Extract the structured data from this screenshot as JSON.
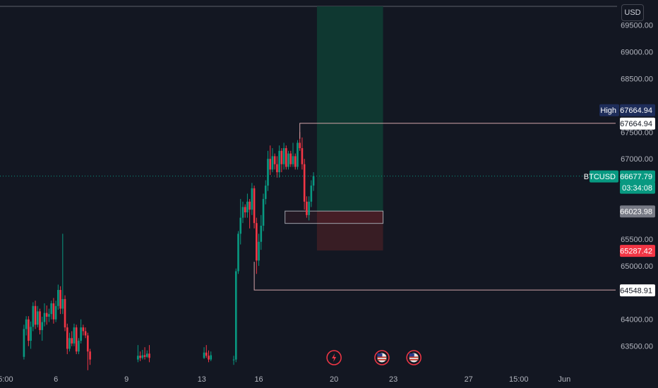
{
  "header": {
    "currency_label": "USD"
  },
  "colors": {
    "background": "#131722",
    "up": "#089981",
    "down": "#f23645",
    "grid": "#1e222d",
    "axis_text": "#b2b5be",
    "profit_zone": "#0f3a33",
    "loss_zone": "#3a1d25",
    "high_badge": "#1e2d5a",
    "symbol_badge": "#089981",
    "entry_badge": "#787b86",
    "stop_badge": "#f23645"
  },
  "chart_data": {
    "type": "candlestick",
    "symbol": "BTCUSD",
    "y_ticks": [
      63500,
      64000,
      64500,
      65000,
      65500,
      66000,
      66500,
      67000,
      67500,
      68000,
      68500,
      69000,
      69500
    ],
    "y_tick_labels": [
      "63500.00",
      "64000.00",
      "",
      "65000.00",
      "65500.00",
      "",
      "",
      "67000.00",
      "67500.00",
      "",
      "68500.00",
      "69000.00",
      "69500.00"
    ],
    "ylim": [
      63100,
      69850
    ],
    "x_ticks": [
      {
        "label": "15:00",
        "index": 1
      },
      {
        "label": "6",
        "index": 24
      },
      {
        "label": "9",
        "index": 55
      },
      {
        "label": "13",
        "index": 88
      },
      {
        "label": "16",
        "index": 113
      },
      {
        "label": "20",
        "index": 146
      },
      {
        "label": "23",
        "index": 172
      },
      {
        "label": "27",
        "index": 205
      },
      {
        "label": "15:00",
        "index": 227
      },
      {
        "label": "Jun",
        "index": 247
      }
    ],
    "x_count": 270,
    "candles": [
      [
        10,
        63300,
        63820,
        63250,
        63900
      ],
      [
        11,
        63820,
        64000,
        63700,
        64060
      ],
      [
        12,
        64000,
        63600,
        63500,
        64060
      ],
      [
        13,
        63600,
        63860,
        63450,
        63960
      ],
      [
        14,
        63860,
        64250,
        63780,
        64320
      ],
      [
        15,
        64250,
        63900,
        63820,
        64350
      ],
      [
        16,
        63900,
        64150,
        63850,
        64250
      ],
      [
        17,
        64150,
        63800,
        63720,
        64200
      ],
      [
        18,
        63800,
        63950,
        63600,
        64050
      ],
      [
        19,
        63950,
        64120,
        63870,
        64300
      ],
      [
        20,
        64120,
        64050,
        63900,
        64260
      ],
      [
        21,
        64050,
        64100,
        63950,
        64200
      ],
      [
        22,
        64100,
        64300,
        64000,
        64350
      ],
      [
        23,
        64300,
        64000,
        63920,
        64400
      ],
      [
        24,
        64000,
        64250,
        63950,
        64350
      ],
      [
        25,
        64250,
        64550,
        64180,
        64650
      ],
      [
        26,
        64550,
        64200,
        64100,
        64620
      ],
      [
        27,
        64200,
        64380,
        64100,
        65600
      ],
      [
        28,
        64380,
        63850,
        63780,
        64450
      ],
      [
        29,
        63850,
        63450,
        63350,
        63920
      ],
      [
        30,
        63450,
        63650,
        63400,
        63750
      ],
      [
        31,
        63650,
        63550,
        63500,
        63780
      ],
      [
        32,
        63550,
        63850,
        63500,
        63920
      ],
      [
        33,
        63850,
        63400,
        63350,
        63900
      ],
      [
        34,
        63400,
        63600,
        63350,
        63650
      ],
      [
        35,
        63600,
        63850,
        63550,
        64000
      ],
      [
        36,
        63850,
        63780,
        63700,
        63900
      ],
      [
        37,
        63780,
        63700,
        63650,
        63850
      ],
      [
        38,
        63700,
        63400,
        63050,
        63750
      ],
      [
        39,
        63400,
        63250,
        63150,
        63450
      ],
      [
        60,
        63250,
        63320,
        63200,
        63520
      ],
      [
        61,
        63320,
        63280,
        63220,
        63400
      ],
      [
        62,
        63280,
        63330,
        63250,
        63430
      ],
      [
        63,
        63330,
        63300,
        63250,
        63480
      ],
      [
        64,
        63300,
        63360,
        63280,
        63420
      ],
      [
        65,
        63360,
        63280,
        63200,
        63520
      ],
      [
        89,
        63280,
        63380,
        63260,
        63480
      ],
      [
        90,
        63380,
        63320,
        63280,
        63520
      ],
      [
        91,
        63320,
        63250,
        63200,
        63420
      ],
      [
        92,
        63250,
        63330,
        63220,
        63400
      ],
      [
        102,
        63250,
        63250,
        63150,
        63320
      ],
      [
        103,
        63250,
        64900,
        63200,
        64950
      ],
      [
        104,
        64900,
        65600,
        64850,
        65650
      ],
      [
        105,
        65600,
        65900,
        65400,
        66250
      ],
      [
        106,
        65900,
        66100,
        65800,
        66200
      ],
      [
        107,
        66100,
        66000,
        65900,
        66150
      ],
      [
        108,
        66000,
        66200,
        65900,
        66350
      ],
      [
        109,
        66200,
        66050,
        65700,
        66250
      ],
      [
        110,
        66050,
        66450,
        65950,
        66550
      ],
      [
        111,
        66450,
        65800,
        65700,
        66500
      ],
      [
        112,
        65800,
        65100,
        64850,
        65900
      ],
      [
        113,
        65100,
        65450,
        65000,
        65600
      ],
      [
        114,
        65450,
        65750,
        65300,
        65950
      ],
      [
        115,
        65750,
        66250,
        65650,
        66350
      ],
      [
        116,
        66250,
        66500,
        66150,
        66600
      ],
      [
        117,
        66500,
        67000,
        66400,
        67150
      ],
      [
        118,
        67000,
        66800,
        66700,
        67250
      ],
      [
        119,
        66800,
        67050,
        66750,
        67200
      ],
      [
        120,
        67050,
        66900,
        66800,
        67100
      ],
      [
        121,
        66900,
        66750,
        66650,
        67050
      ],
      [
        122,
        66750,
        67150,
        66650,
        67250
      ],
      [
        123,
        67150,
        66900,
        66750,
        67200
      ],
      [
        124,
        66900,
        67200,
        66800,
        67300
      ],
      [
        125,
        67200,
        66850,
        66800,
        67250
      ],
      [
        126,
        66850,
        67100,
        66800,
        67150
      ],
      [
        127,
        67100,
        66900,
        66850,
        67150
      ],
      [
        128,
        66900,
        67050,
        66850,
        67300
      ],
      [
        129,
        67050,
        66850,
        66800,
        67100
      ],
      [
        130,
        66850,
        67300,
        66800,
        67350
      ],
      [
        131,
        67300,
        67200,
        67150,
        67500
      ],
      [
        132,
        67200,
        66900,
        66800,
        67400
      ],
      [
        133,
        66900,
        66200,
        66050,
        67000
      ],
      [
        134,
        66200,
        65950,
        65900,
        66300
      ],
      [
        135,
        65950,
        66200,
        65850,
        66300
      ],
      [
        136,
        66200,
        66500,
        66100,
        66600
      ],
      [
        137,
        66500,
        66680,
        66400,
        66750
      ]
    ],
    "long_position": {
      "entry": 66023.98,
      "take_profit": 69850,
      "stop": 65287.42,
      "start_index": 139,
      "end_index": 167
    },
    "high_marker": {
      "value": 67664.94,
      "start_index": 131
    },
    "low_marker": {
      "value": 64548.91,
      "start_index": 111
    },
    "event_icons": [
      {
        "type": "lightning",
        "index": 146
      },
      {
        "type": "us-flag",
        "index": 167
      },
      {
        "type": "us-flag",
        "index": 181
      }
    ],
    "price_labels": {
      "high_tag": "High",
      "high_value": "67664.94",
      "high_line_value": "67664.94",
      "symbol": "BTCUSD",
      "last_price": "66677.79",
      "countdown": "03:34:08",
      "entry_value": "66023.98",
      "stop_value": "65287.42",
      "low_value": "64548.91"
    },
    "last_price": 66677.79
  }
}
